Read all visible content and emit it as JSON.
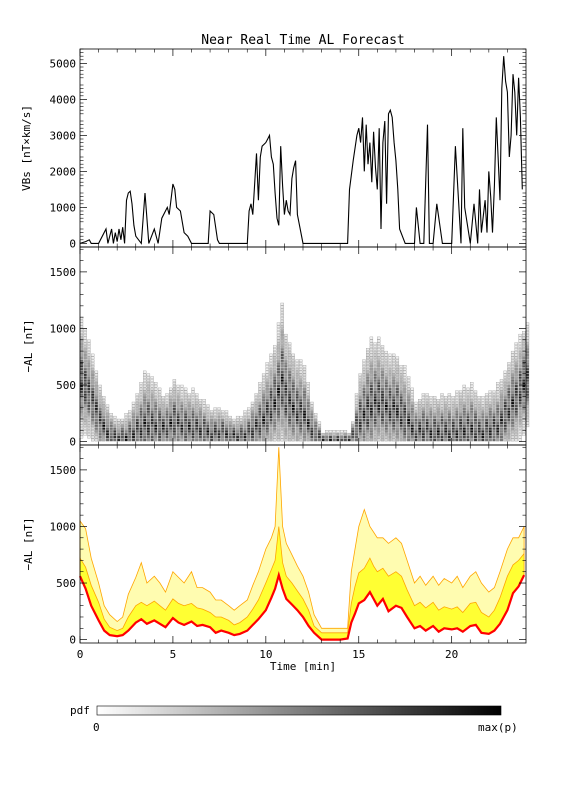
{
  "title": "Near Real Time AL Forecast",
  "colorbar": {
    "label": "pdf",
    "min_label": "0",
    "max_label": "max(p)",
    "colors": [
      "#ffffff",
      "#000000"
    ]
  },
  "chart_data": [
    {
      "type": "line",
      "panel": "vbs",
      "ylabel": "VBs [nT×km/s]",
      "ylim": [
        -100,
        5400
      ],
      "xlim": [
        0,
        24
      ],
      "xticks": [
        "0",
        "5",
        "10",
        "15",
        "20"
      ],
      "yticks": [
        "0",
        "1000",
        "2000",
        "3000",
        "4000",
        "5000"
      ],
      "color": "#000000",
      "x": [
        0,
        0.3,
        0.5,
        0.6,
        0.8,
        1.0,
        1.4,
        1.5,
        1.7,
        1.8,
        1.9,
        2.0,
        2.1,
        2.2,
        2.3,
        2.4,
        2.5,
        2.6,
        2.7,
        2.8,
        2.9,
        3.0,
        3.3,
        3.5,
        3.7,
        4.0,
        4.2,
        4.4,
        4.7,
        4.8,
        5.0,
        5.1,
        5.2,
        5.4,
        5.6,
        5.8,
        6.0,
        6.5,
        6.9,
        7.0,
        7.2,
        7.4,
        7.5,
        7.7,
        9.0,
        9.1,
        9.2,
        9.3,
        9.5,
        9.6,
        9.7,
        9.8,
        10.0,
        10.1,
        10.2,
        10.3,
        10.4,
        10.5,
        10.6,
        10.7,
        10.8,
        10.9,
        11.0,
        11.1,
        11.2,
        11.3,
        11.4,
        11.5,
        11.6,
        11.7,
        12.0,
        14.4,
        14.5,
        14.7,
        14.9,
        15.0,
        15.1,
        15.2,
        15.3,
        15.4,
        15.5,
        15.6,
        15.7,
        15.8,
        15.9,
        16.0,
        16.1,
        16.2,
        16.3,
        16.4,
        16.5,
        16.6,
        16.7,
        16.8,
        16.9,
        17.0,
        17.1,
        17.2,
        17.5,
        18.0,
        18.1,
        18.3,
        18.5,
        18.7,
        18.8,
        19.0,
        19.2,
        19.5,
        20.0,
        20.2,
        20.5,
        20.6,
        20.7,
        21.0,
        21.2,
        21.4,
        21.5,
        21.6,
        21.8,
        21.9,
        22.0,
        22.1,
        22.2,
        22.3,
        22.4,
        22.5,
        22.6,
        22.7,
        22.8,
        22.9,
        23.0,
        23.1,
        23.2,
        23.3,
        23.4,
        23.5,
        23.6,
        23.7,
        23.8
      ],
      "y": [
        0,
        50,
        100,
        0,
        0,
        0,
        400,
        0,
        400,
        0,
        300,
        50,
        400,
        100,
        450,
        0,
        1200,
        1400,
        1450,
        1100,
        500,
        200,
        0,
        1400,
        0,
        400,
        0,
        700,
        1000,
        800,
        1650,
        1500,
        1000,
        900,
        300,
        200,
        0,
        0,
        0,
        900,
        800,
        100,
        0,
        0,
        0,
        900,
        1100,
        800,
        2500,
        1200,
        2400,
        2700,
        2800,
        2900,
        3000,
        2400,
        2200,
        1400,
        700,
        500,
        2700,
        1600,
        800,
        1200,
        900,
        800,
        1800,
        2100,
        2300,
        800,
        0,
        0,
        1500,
        2300,
        3000,
        3200,
        2800,
        3500,
        2000,
        3300,
        2200,
        2800,
        1700,
        3100,
        2100,
        1500,
        3200,
        400,
        2800,
        3400,
        1100,
        3600,
        3700,
        3500,
        2800,
        2300,
        1500,
        400,
        0,
        0,
        1000,
        0,
        0,
        3300,
        0,
        0,
        1100,
        0,
        0,
        2700,
        0,
        3200,
        1000,
        0,
        1100,
        0,
        1500,
        300,
        1200,
        300,
        2000,
        1300,
        300,
        1600,
        3500,
        2400,
        1200,
        4300,
        5200,
        4500,
        4200,
        2400,
        3000,
        4700,
        4200,
        3000,
        4600,
        3500,
        1500
      ]
    },
    {
      "type": "heatmap",
      "panel": "pdf",
      "ylabel": "−AL [nT]",
      "ylim": [
        -30,
        1720
      ],
      "xlim": [
        0,
        24
      ],
      "xticks": [
        "0",
        "5",
        "10",
        "15",
        "20"
      ],
      "yticks": [
        "0",
        "500",
        "1000",
        "1500"
      ],
      "cell_width": 0.2,
      "cell_height": 25,
      "color_scale": [
        "#ffffff",
        "#000000"
      ],
      "x": [
        0,
        0.5,
        1.0,
        1.5,
        2.0,
        2.5,
        3.0,
        3.5,
        4.0,
        4.5,
        5.0,
        5.5,
        6.0,
        6.5,
        7.0,
        7.5,
        8.0,
        8.5,
        9.0,
        9.5,
        10.0,
        10.5,
        10.8,
        11.0,
        11.5,
        12.0,
        12.5,
        13.0,
        13.5,
        14.0,
        14.5,
        15.0,
        15.5,
        16.0,
        16.5,
        17.0,
        17.5,
        18.0,
        18.5,
        19.0,
        19.5,
        20.0,
        20.5,
        21.0,
        21.5,
        22.0,
        22.5,
        23.0,
        23.5,
        23.9
      ],
      "median": [
        560,
        420,
        180,
        60,
        30,
        30,
        110,
        170,
        150,
        120,
        190,
        140,
        130,
        110,
        70,
        90,
        60,
        40,
        80,
        150,
        260,
        400,
        560,
        420,
        300,
        250,
        80,
        10,
        10,
        10,
        10,
        210,
        330,
        380,
        310,
        300,
        200,
        90,
        120,
        80,
        100,
        90,
        110,
        130,
        70,
        120,
        150,
        300,
        430,
        570
      ],
      "spread": [
        500,
        400,
        300,
        200,
        150,
        200,
        300,
        450,
        350,
        250,
        350,
        300,
        300,
        250,
        200,
        200,
        150,
        150,
        200,
        300,
        400,
        500,
        650,
        550,
        450,
        400,
        200,
        60,
        60,
        60,
        60,
        400,
        550,
        500,
        450,
        450,
        400,
        250,
        300,
        300,
        300,
        300,
        350,
        350,
        300,
        300,
        350,
        400,
        450,
        450
      ]
    },
    {
      "type": "area",
      "panel": "percentiles",
      "ylabel": "−AL [nT]",
      "xlabel": "Time [min]",
      "ylim": [
        -30,
        1720
      ],
      "xlim": [
        0,
        24
      ],
      "xticks": [
        "0",
        "5",
        "10",
        "15",
        "20"
      ],
      "yticks": [
        "0",
        "500",
        "1000",
        "1500"
      ],
      "fill_colors": [
        "#fffcb0",
        "#ffff33"
      ],
      "edge_color": "#ffa500",
      "median_color": "#ff0000",
      "x": [
        0,
        0.3,
        0.6,
        1.0,
        1.3,
        1.6,
        2.0,
        2.3,
        2.6,
        3.0,
        3.3,
        3.6,
        4.0,
        4.3,
        4.6,
        5.0,
        5.3,
        5.6,
        6.0,
        6.3,
        6.6,
        7.0,
        7.3,
        7.6,
        8.0,
        8.3,
        8.6,
        9.0,
        9.3,
        9.6,
        10.0,
        10.3,
        10.5,
        10.7,
        10.9,
        11.1,
        11.4,
        11.7,
        12.0,
        12.3,
        12.6,
        13.0,
        13.4,
        14.0,
        14.4,
        14.6,
        14.8,
        15.0,
        15.3,
        15.6,
        15.8,
        16.0,
        16.3,
        16.6,
        17.0,
        17.3,
        17.6,
        18.0,
        18.3,
        18.6,
        19.0,
        19.3,
        19.6,
        20.0,
        20.3,
        20.6,
        21.0,
        21.3,
        21.6,
        22.0,
        22.3,
        22.6,
        23.0,
        23.3,
        23.6,
        23.9
      ],
      "median": [
        560,
        450,
        300,
        170,
        80,
        40,
        30,
        40,
        80,
        150,
        180,
        140,
        170,
        140,
        110,
        190,
        150,
        130,
        160,
        120,
        130,
        110,
        60,
        80,
        60,
        40,
        50,
        80,
        130,
        180,
        260,
        370,
        450,
        570,
        450,
        360,
        310,
        260,
        200,
        120,
        60,
        0,
        0,
        0,
        10,
        150,
        230,
        320,
        350,
        420,
        360,
        300,
        360,
        250,
        300,
        280,
        200,
        100,
        120,
        80,
        120,
        70,
        100,
        90,
        100,
        70,
        120,
        130,
        60,
        50,
        80,
        140,
        260,
        410,
        470,
        570
      ],
      "p_inner": [
        720,
        640,
        480,
        330,
        180,
        110,
        80,
        100,
        200,
        300,
        330,
        300,
        340,
        300,
        260,
        360,
        320,
        300,
        320,
        280,
        270,
        240,
        200,
        200,
        170,
        130,
        150,
        200,
        270,
        350,
        500,
        620,
        700,
        1000,
        680,
        560,
        500,
        430,
        360,
        260,
        120,
        60,
        60,
        60,
        60,
        320,
        470,
        590,
        630,
        720,
        650,
        600,
        630,
        560,
        600,
        560,
        440,
        300,
        330,
        280,
        330,
        260,
        290,
        270,
        290,
        240,
        320,
        330,
        240,
        200,
        260,
        370,
        560,
        660,
        700,
        760
      ],
      "p_outer": [
        1050,
        980,
        720,
        500,
        300,
        220,
        160,
        200,
        400,
        550,
        680,
        500,
        560,
        500,
        420,
        600,
        550,
        500,
        600,
        460,
        460,
        420,
        350,
        350,
        300,
        260,
        300,
        350,
        480,
        600,
        800,
        900,
        1000,
        1700,
        1000,
        850,
        750,
        650,
        560,
        420,
        220,
        100,
        100,
        100,
        100,
        600,
        800,
        1000,
        1150,
        1000,
        950,
        900,
        900,
        850,
        900,
        850,
        700,
        500,
        560,
        480,
        560,
        480,
        540,
        500,
        560,
        460,
        560,
        600,
        500,
        420,
        460,
        600,
        800,
        900,
        900,
        1000
      ]
    }
  ]
}
